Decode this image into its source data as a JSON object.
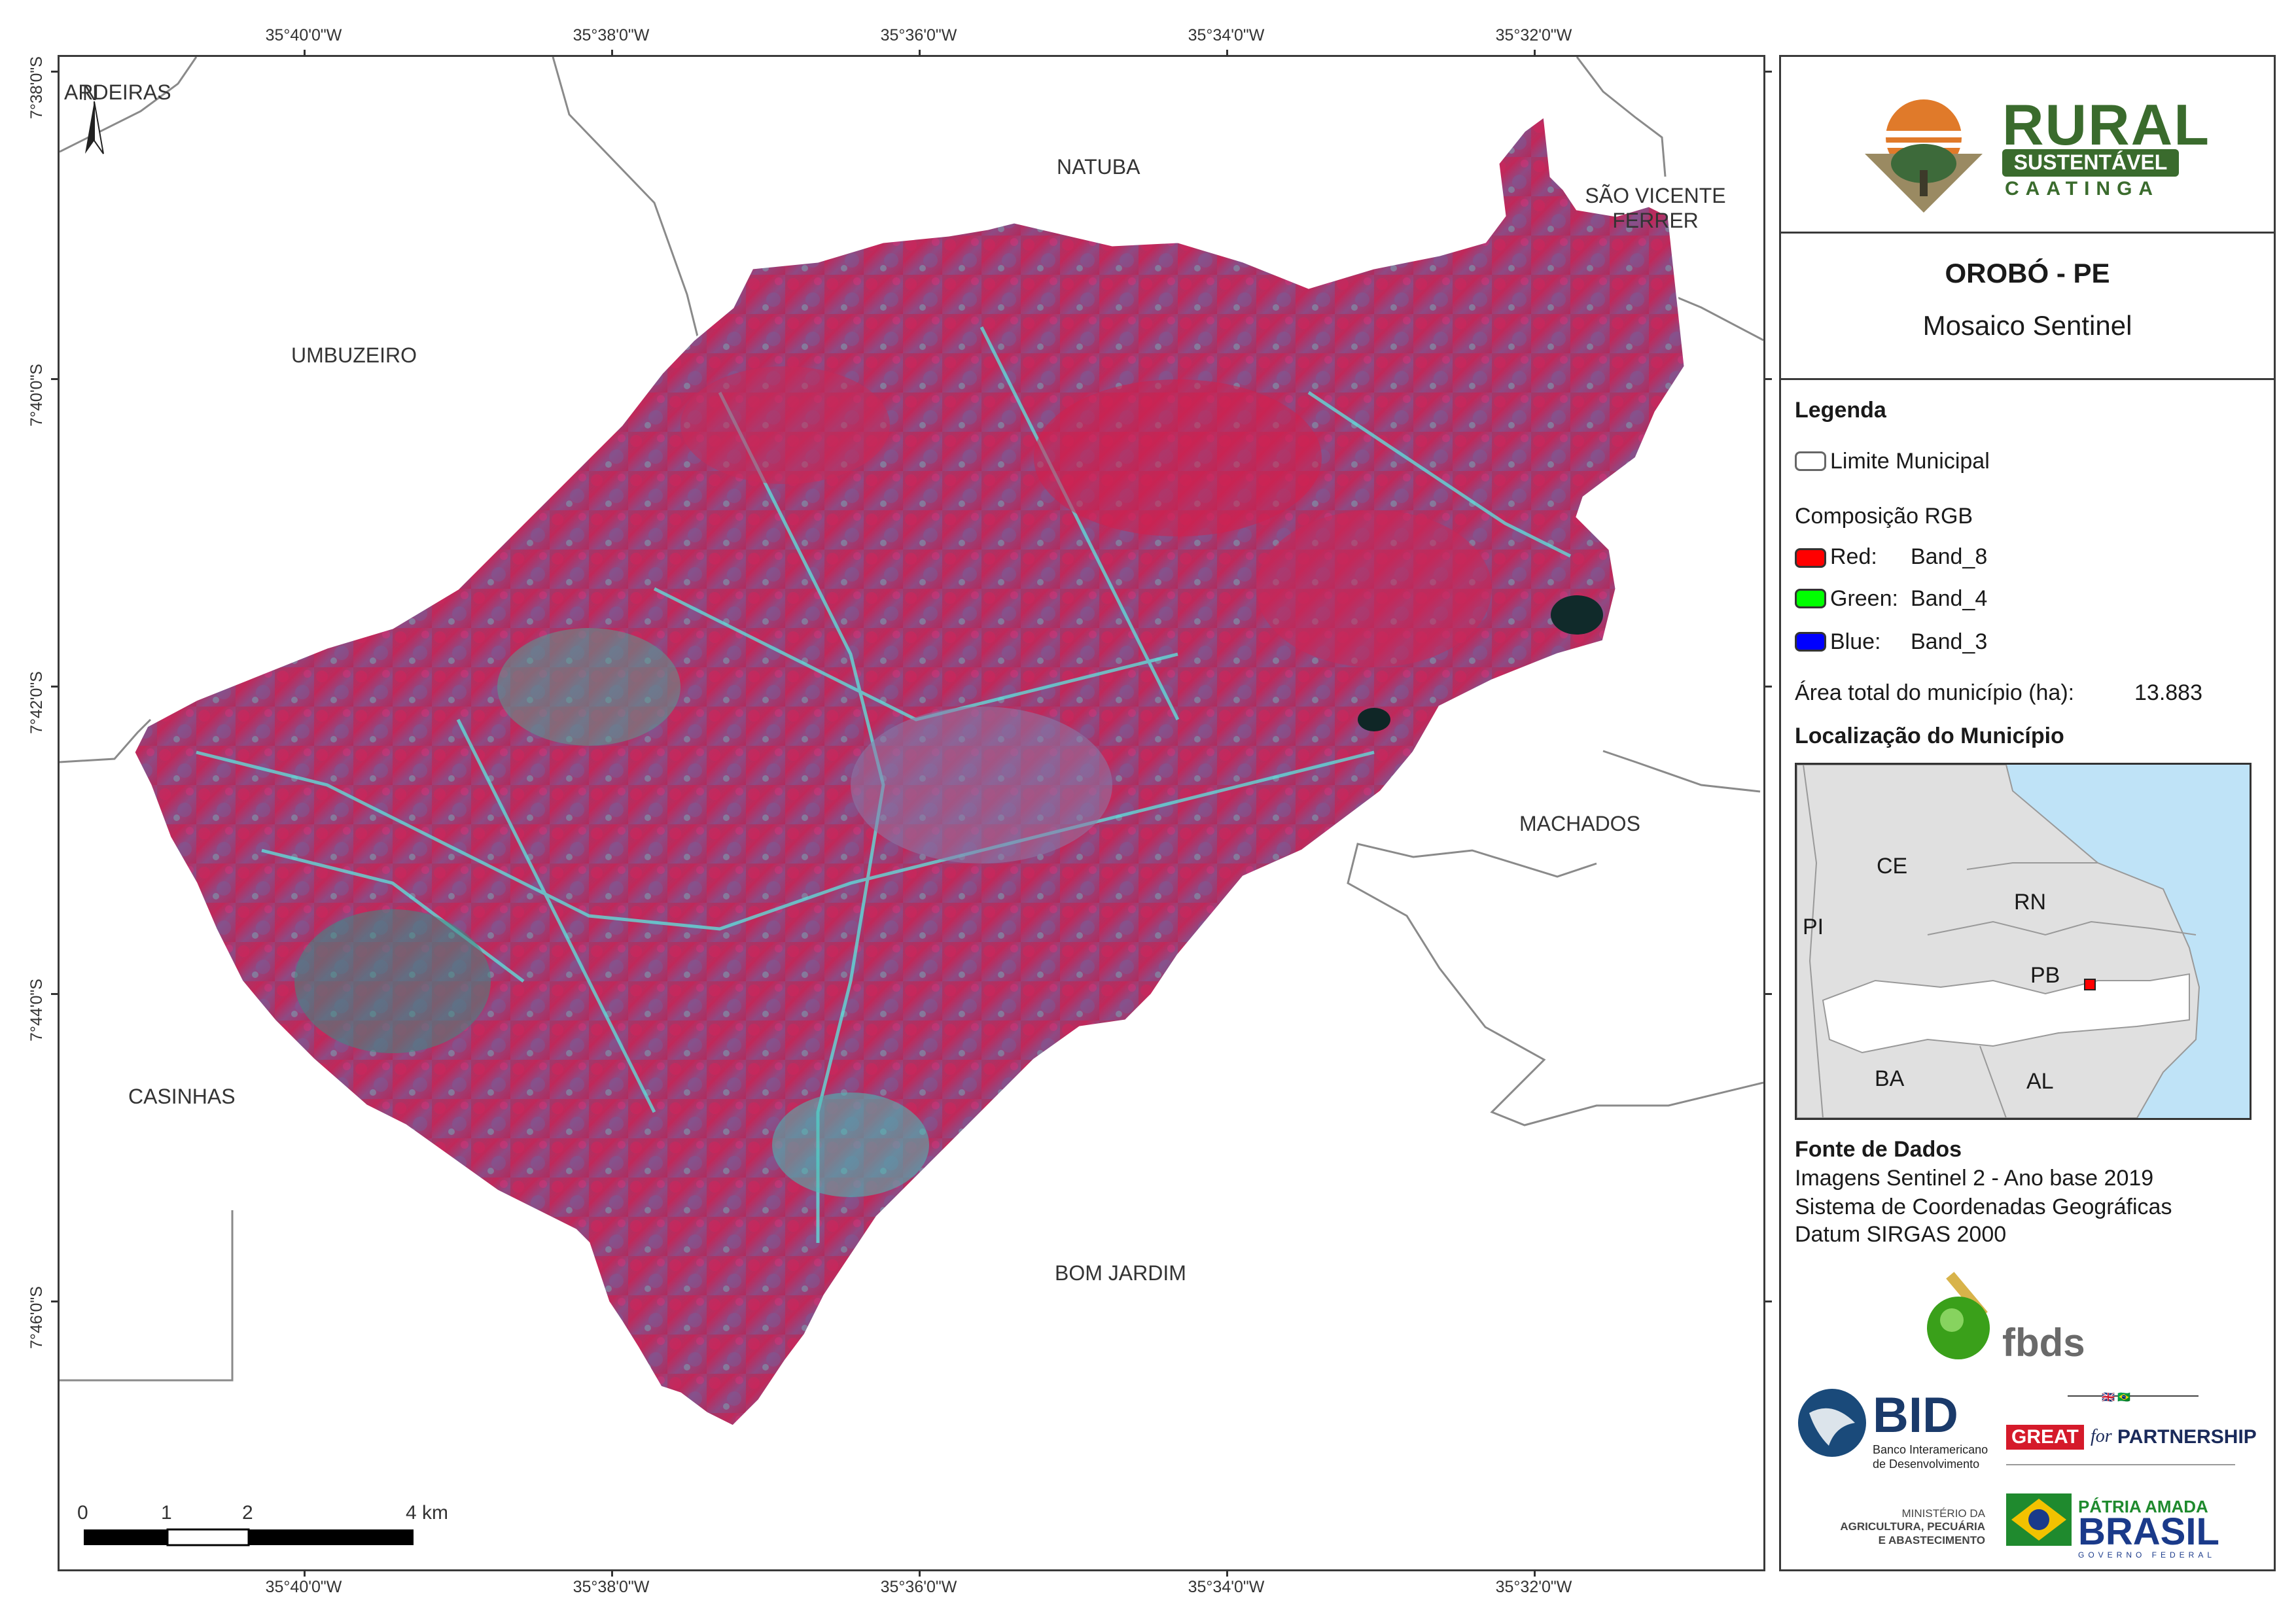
{
  "map": {
    "coords_top": [
      "35°40'0\"W",
      "35°38'0\"W",
      "35°36'0\"W",
      "35°34'0\"W",
      "35°32'0\"W"
    ],
    "coords_bottom": [
      "35°40'0\"W",
      "35°38'0\"W",
      "35°36'0\"W",
      "35°34'0\"W",
      "35°32'0\"W"
    ],
    "coords_left": [
      "7°38'0\"S",
      "7°40'0\"S",
      "7°42'0\"S",
      "7°44'0\"S",
      "7°46'0\"S"
    ],
    "north_label": "N",
    "municipalities": {
      "ardeiras": "ARDEIRAS",
      "natuba": "NATUBA",
      "sao_vicente_ferrer": "SÃO VICENTE FERRER",
      "umbuzeiro": "UMBUZEIRO",
      "machados": "MACHADOS",
      "casinhas": "CASINHAS",
      "bom_jardim": "BOM JARDIM"
    },
    "scale_bar": {
      "ticks": [
        "0",
        "1",
        "2",
        "4 km"
      ]
    }
  },
  "panel": {
    "logo_rural": {
      "word1": "RURAL",
      "word2": "SUSTENTÁVEL",
      "word3": "CAATINGA"
    },
    "title": "OROBÓ - PE",
    "subtitle": "Mosaico Sentinel",
    "legend": {
      "heading": "Legenda",
      "limit_label": "Limite Municipal",
      "rgb_heading": "Composição RGB",
      "red": {
        "label": "Red:",
        "band": "Band_8",
        "color": "#ff0000"
      },
      "green": {
        "label": "Green:",
        "band": "Band_4",
        "color": "#00ff00"
      },
      "blue": {
        "label": "Blue:",
        "band": "Band_3",
        "color": "#0000ff"
      },
      "area_label": "Área total do município (ha):",
      "area_value": "13.883"
    },
    "location": {
      "heading": "Localização do Município",
      "states": {
        "ce": "CE",
        "rn": "RN",
        "pi": "PI",
        "pb": "PB",
        "ba": "BA",
        "al": "AL"
      }
    },
    "sources": {
      "heading": "Fonte de Dados",
      "line1": "Imagens Sentinel 2 - Ano base 2019",
      "line2": "Sistema de Coordenadas Geográficas",
      "line3": "Datum SIRGAS 2000"
    },
    "logos": {
      "fbds": "fbds",
      "bid": "BID",
      "bid_sub1": "Banco Interamericano",
      "bid_sub2": "de Desenvolvimento",
      "great": "GREAT",
      "for": "for",
      "partnership": "PARTNERSHIP",
      "ministerio1": "MINISTÉRIO DA",
      "ministerio2": "AGRICULTURA, PECUÁRIA",
      "ministerio3": "E ABASTECIMENTO",
      "patria": "PÁTRIA AMADA",
      "brasil": "BRASIL",
      "governo": "GOVERNO FEDERAL"
    }
  }
}
